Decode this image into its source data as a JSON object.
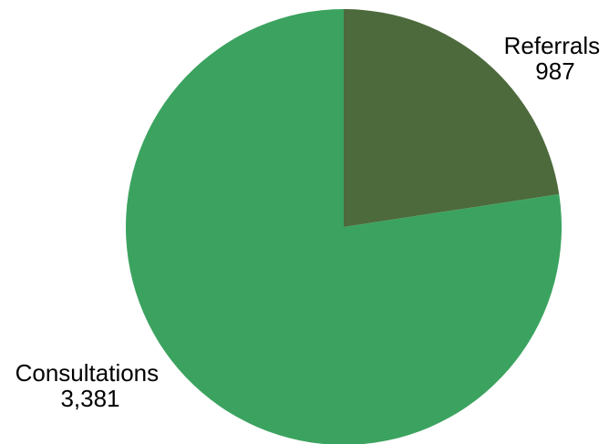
{
  "chart_data": {
    "type": "pie",
    "title": "",
    "start_angle": "12 o'clock",
    "direction": "clockwise",
    "slices": [
      {
        "label": "Referrals",
        "value": 987,
        "value_text": "987",
        "color": "#4d6a3c"
      },
      {
        "label": "Consultations",
        "value": 3381,
        "value_text": "3,381",
        "color": "#3ba35f"
      }
    ],
    "legend": "none",
    "data_labels": "outside, category and value"
  }
}
